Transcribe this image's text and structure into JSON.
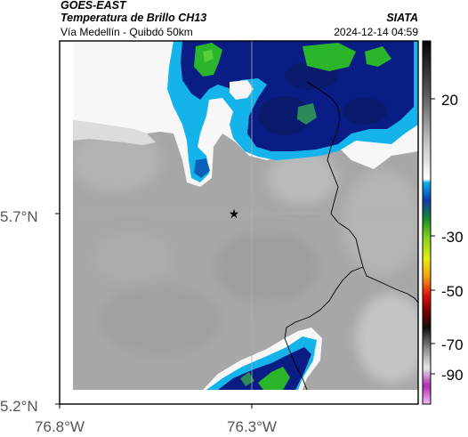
{
  "header": {
    "satellite": "GOES-EAST",
    "product": "Temperatura de Brillo CH13",
    "region": "Vía Medellín - Quibdó 50km",
    "agency": "SIATA",
    "timestamp": "2024-12-14 04:59"
  },
  "map": {
    "lat_ticks": [
      "5.7°N",
      "5.2°N"
    ],
    "lon_ticks": [
      "76.8°W",
      "76.3°W"
    ],
    "marker": "star-marker",
    "colors": {
      "warm_background": "#a7a7a7",
      "cloud_white": "#f7f7f7",
      "cloud_cyan": "#14b4ea",
      "cloud_blue": "#0a1d85",
      "cloud_green": "#2ab52a",
      "border_line": "#000000",
      "grid_line": "#b0b0b0"
    }
  },
  "colorbar": {
    "labels": [
      "20",
      "-30",
      "-50",
      "-70",
      "-90"
    ]
  }
}
